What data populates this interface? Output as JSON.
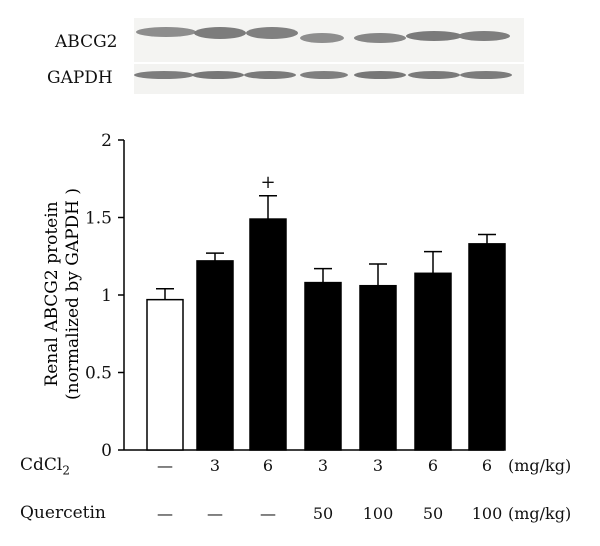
{
  "blot": {
    "labels": [
      "ABCG2",
      "GAPDH"
    ]
  },
  "chart_data": {
    "type": "bar",
    "ylabel_line1": "Renal ABCG2 protein",
    "ylabel_line2": "(normalized by GAPDH )",
    "ylim": [
      0,
      2
    ],
    "yticks": [
      "0",
      "0.5",
      "1",
      "1.5",
      "2"
    ],
    "values": [
      0.97,
      1.22,
      1.49,
      1.08,
      1.06,
      1.14,
      1.33
    ],
    "errors": [
      0.07,
      0.05,
      0.15,
      0.09,
      0.14,
      0.14,
      0.06
    ],
    "fill": [
      "#ffffff",
      "#000000",
      "#000000",
      "#000000",
      "#000000",
      "#000000",
      "#000000"
    ],
    "annotations": [
      "",
      "",
      "+",
      "",
      "",
      "",
      ""
    ]
  },
  "table": {
    "rows": [
      {
        "label": "CdCl",
        "label_sub": "2",
        "cells": [
          "—",
          "3",
          "6",
          "3",
          "3",
          "6",
          "6"
        ],
        "unit": "(mg/kg)"
      },
      {
        "label": "Quercetin",
        "label_sub": "",
        "cells": [
          "—",
          "—",
          "—",
          "50",
          "100",
          "50",
          "100"
        ],
        "unit": "(mg/kg)"
      }
    ]
  }
}
